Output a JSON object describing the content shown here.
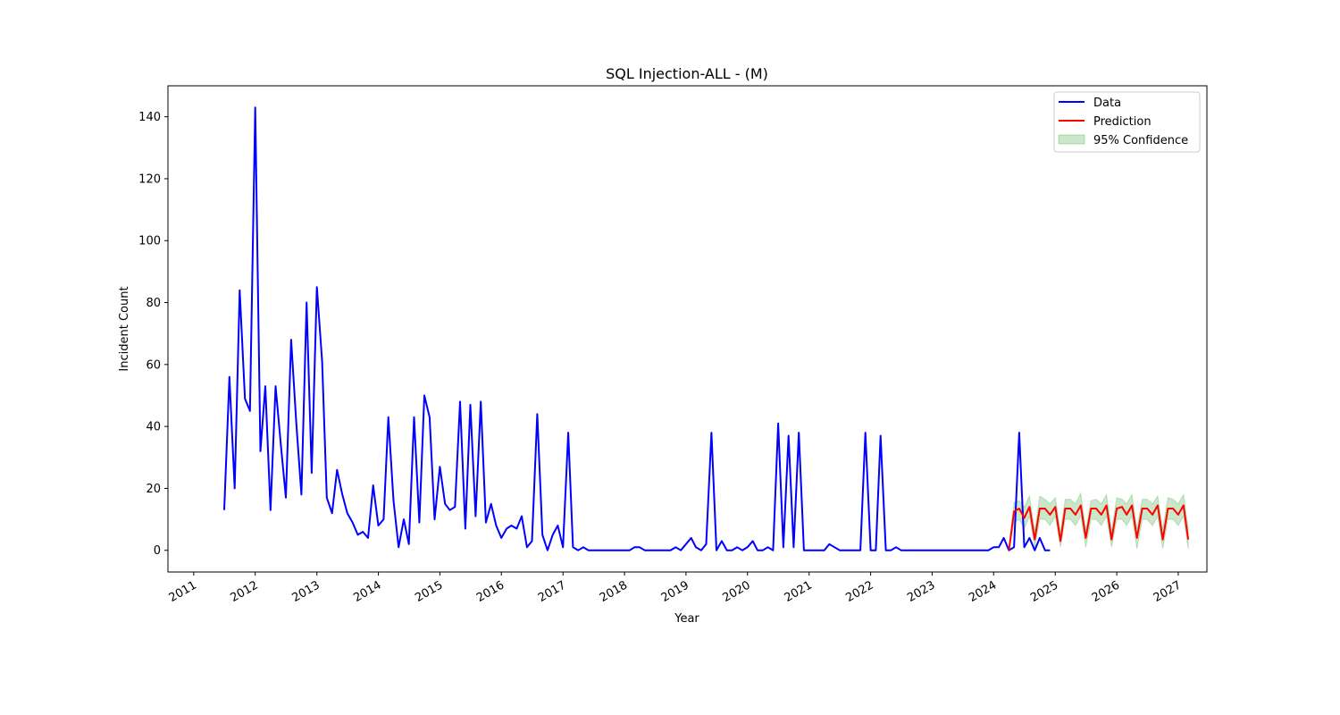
{
  "chart_data": {
    "type": "line",
    "title": "SQL Injection-ALL - (M)",
    "xlabel": "Year",
    "ylabel": "Incident Count",
    "xlim": [
      "2010-08-01",
      "2027-06-20"
    ],
    "ylim": [
      -7,
      150
    ],
    "x_ticks": [
      "2011",
      "2012",
      "2013",
      "2014",
      "2015",
      "2016",
      "2017",
      "2018",
      "2019",
      "2020",
      "2021",
      "2022",
      "2023",
      "2024",
      "2025",
      "2026",
      "2027"
    ],
    "y_ticks": [
      0,
      20,
      40,
      60,
      80,
      100,
      120,
      140
    ],
    "grid": false,
    "legend_position": "top-right",
    "legend": {
      "data": "Data",
      "prediction": "Prediction",
      "confidence": "95% Confidence"
    },
    "colors": {
      "data": "#0000ff",
      "prediction": "#ff0000",
      "confidence_fill": "#2ca02c"
    },
    "series": [
      {
        "name": "Data",
        "start": "2011-07",
        "frequency": "monthly",
        "values": [
          13,
          56,
          20,
          84,
          49,
          45,
          143,
          32,
          53,
          13,
          53,
          34,
          17,
          68,
          41,
          18,
          80,
          25,
          85,
          61,
          17,
          12,
          26,
          18,
          12,
          9,
          5,
          6,
          4,
          21,
          8,
          10,
          43,
          16,
          1,
          10,
          2,
          43,
          9,
          50,
          43,
          10,
          27,
          15,
          13,
          14,
          48,
          7,
          47,
          11,
          48,
          9,
          15,
          8,
          4,
          7,
          8,
          7,
          11,
          1,
          3,
          44,
          5,
          0,
          5,
          8,
          1,
          38,
          1,
          0,
          1,
          0,
          0,
          0,
          0,
          0,
          0,
          0,
          0,
          0,
          1,
          1,
          0,
          0,
          0,
          0,
          0,
          0,
          1,
          0,
          2,
          4,
          1,
          0,
          2,
          38,
          0,
          3,
          0,
          0,
          1,
          0,
          1,
          3,
          0,
          0,
          1,
          0,
          41,
          1,
          37,
          1,
          38,
          0,
          0,
          0,
          0,
          0,
          2,
          1,
          0,
          0,
          0,
          0,
          0,
          38,
          0,
          0,
          37,
          0,
          0,
          1,
          0,
          0,
          0,
          0,
          0,
          0,
          0,
          0,
          0,
          0,
          0,
          0,
          0,
          0,
          0,
          0,
          0,
          0,
          1,
          1,
          4,
          0,
          1,
          38,
          1,
          4,
          0,
          4,
          0,
          0
        ]
      },
      {
        "name": "Prediction",
        "start": "2024-04",
        "frequency": "monthly",
        "values": [
          0,
          12.5,
          13.5,
          10.5,
          14,
          3.5,
          13.5,
          13.5,
          11.5,
          14,
          3,
          13.5,
          13.5,
          11.5,
          14.5,
          4,
          13.5,
          13.5,
          11.5,
          14.5,
          3.5,
          13.5,
          14,
          11.5,
          14.5,
          4,
          13.5,
          13.5,
          11.5,
          14.5,
          3.5,
          13.5,
          13.5,
          11.5,
          14.5,
          3.5
        ],
        "lower": [
          0,
          9,
          10,
          7,
          11,
          1,
          10,
          10,
          8,
          11,
          1,
          10,
          10,
          8,
          11,
          1,
          10,
          10,
          8,
          11,
          1,
          10,
          10,
          8,
          11,
          0.5,
          10,
          10,
          8,
          11,
          0.5,
          10,
          10,
          8,
          11,
          0.5
        ],
        "upper": [
          0,
          15.5,
          16,
          14,
          17.5,
          6,
          17.5,
          16.5,
          15,
          17,
          6,
          16.5,
          16.5,
          15,
          18.5,
          6.5,
          16,
          16.5,
          15,
          18,
          6.5,
          17,
          16.5,
          15,
          18,
          7,
          16.5,
          16.5,
          15,
          17.5,
          7,
          17,
          16.5,
          15,
          18,
          7
        ]
      }
    ]
  }
}
